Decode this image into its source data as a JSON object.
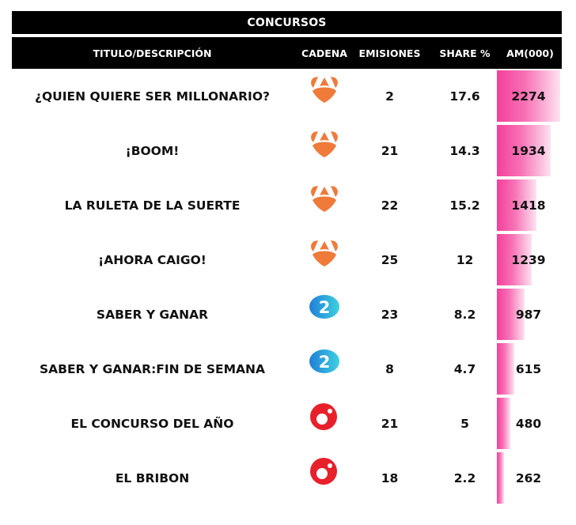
{
  "title": "CONCURSOS",
  "headers": {
    "title": "TITULO/DESCRIPCIÓN",
    "cadena": "CADENA",
    "emisiones": "EMISIONES",
    "share": "SHARE %",
    "am": "AM(000)"
  },
  "colors": {
    "header_bg": "#000000",
    "header_text": "#ffffff",
    "bar_start": "#f43f9a",
    "bar_end": "#fde3f0",
    "antena3": "#f07a3a",
    "la2": "#2a9fe0",
    "cuatro": "#e8202a"
  },
  "rows": [
    {
      "title": "¿QUIEN QUIERE SER MILLONARIO?",
      "cadena": "antena3-logo-icon",
      "emisiones": "2",
      "share": "17.6",
      "am": "2274"
    },
    {
      "title": "¡BOOM!",
      "cadena": "antena3-logo-icon",
      "emisiones": "21",
      "share": "14.3",
      "am": "1934"
    },
    {
      "title": "LA RULETA DE LA SUERTE",
      "cadena": "antena3-logo-icon",
      "emisiones": "22",
      "share": "15.2",
      "am": "1418"
    },
    {
      "title": "¡AHORA CAIGO!",
      "cadena": "antena3-logo-icon",
      "emisiones": "25",
      "share": "12",
      "am": "1239"
    },
    {
      "title": "SABER Y GANAR",
      "cadena": "la2-logo-icon",
      "emisiones": "23",
      "share": "8.2",
      "am": "987"
    },
    {
      "title": "SABER Y GANAR:FIN DE SEMANA",
      "cadena": "la2-logo-icon",
      "emisiones": "8",
      "share": "4.7",
      "am": "615"
    },
    {
      "title": "EL CONCURSO DEL AÑO",
      "cadena": "cuatro-logo-icon",
      "emisiones": "21",
      "share": "5",
      "am": "480"
    },
    {
      "title": "EL BRIBON",
      "cadena": "cuatro-logo-icon",
      "emisiones": "18",
      "share": "2.2",
      "am": "262"
    }
  ],
  "chart_data": {
    "type": "table",
    "title": "CONCURSOS",
    "columns": [
      "TITULO/DESCRIPCIÓN",
      "CADENA",
      "EMISIONES",
      "SHARE %",
      "AM(000)"
    ],
    "categories": [
      "¿QUIEN QUIERE SER MILLONARIO?",
      "¡BOOM!",
      "LA RULETA DE LA SUERTE",
      "¡AHORA CAIGO!",
      "SABER Y GANAR",
      "SABER Y GANAR:FIN DE SEMANA",
      "EL CONCURSO DEL AÑO",
      "EL BRIBON"
    ],
    "series": [
      {
        "name": "CADENA",
        "values": [
          "Antena 3",
          "Antena 3",
          "Antena 3",
          "Antena 3",
          "La 2",
          "La 2",
          "Cuatro",
          "Cuatro"
        ]
      },
      {
        "name": "EMISIONES",
        "values": [
          2,
          21,
          22,
          25,
          23,
          8,
          21,
          18
        ]
      },
      {
        "name": "SHARE %",
        "values": [
          17.6,
          14.3,
          15.2,
          12,
          8.2,
          4.7,
          5,
          2.2
        ]
      },
      {
        "name": "AM(000)",
        "values": [
          2274,
          1934,
          1418,
          1239,
          987,
          615,
          480,
          262
        ]
      }
    ],
    "bar_column": "AM(000)",
    "bar_max": 2274
  }
}
